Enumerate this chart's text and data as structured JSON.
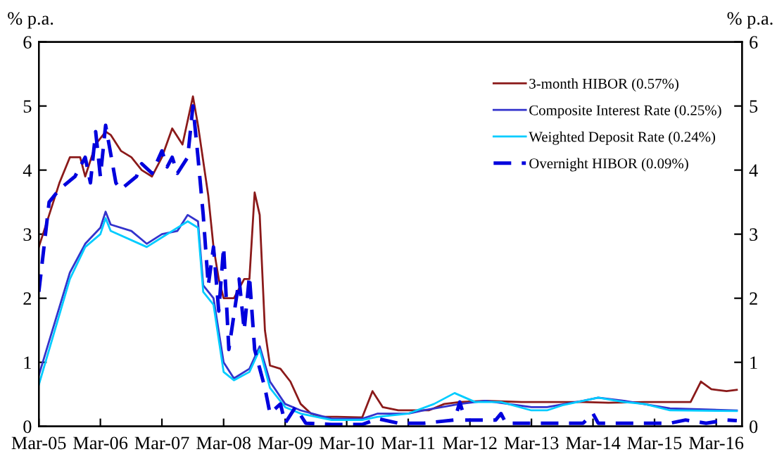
{
  "chart_data": {
    "type": "line",
    "ylabel": "% p.a.",
    "y2label": "% p.a.",
    "xlim": [
      "2005-03",
      "2016-08"
    ],
    "xticks": [
      {
        "value": "2005-03",
        "label": "Mar-05"
      },
      {
        "value": "2006-03",
        "label": "Mar-06"
      },
      {
        "value": "2007-03",
        "label": "Mar-07"
      },
      {
        "value": "2008-03",
        "label": "Mar-08"
      },
      {
        "value": "2009-03",
        "label": "Mar-09"
      },
      {
        "value": "2010-03",
        "label": "Mar-10"
      },
      {
        "value": "2011-03",
        "label": "Mar-11"
      },
      {
        "value": "2012-03",
        "label": "Mar-12"
      },
      {
        "value": "2013-03",
        "label": "Mar-13"
      },
      {
        "value": "2014-03",
        "label": "Mar-14"
      },
      {
        "value": "2015-03",
        "label": "Mar-15"
      },
      {
        "value": "2016-03",
        "label": "Mar-16"
      }
    ],
    "ylim": [
      0,
      6
    ],
    "yticks": [
      0,
      1,
      2,
      3,
      4,
      5,
      6
    ],
    "y2lim": [
      0,
      6
    ],
    "y2ticks": [
      0,
      1,
      2,
      3,
      4,
      5,
      6
    ],
    "grid": false,
    "legend": "top right",
    "marker": "none",
    "series": [
      {
        "name": "3-month HIBOR (0.57%)",
        "color": "#8b1a1a",
        "line_style": "solid",
        "x": [
          "2005-03",
          "2005-05",
          "2005-07",
          "2005-09",
          "2005-11",
          "2005-12",
          "2006-02",
          "2006-04",
          "2006-05",
          "2006-07",
          "2006-09",
          "2006-11",
          "2007-01",
          "2007-03",
          "2007-05",
          "2007-07",
          "2007-09",
          "2007-10",
          "2007-12",
          "2008-01",
          "2008-02",
          "2008-03",
          "2008-05",
          "2008-07",
          "2008-08",
          "2008-09",
          "2008-10",
          "2008-11",
          "2008-12",
          "2009-02",
          "2009-04",
          "2009-06",
          "2009-08",
          "2009-10",
          "2010-01",
          "2010-06",
          "2010-08",
          "2010-10",
          "2011-01",
          "2011-04",
          "2011-07",
          "2011-10",
          "2012-01",
          "2012-06",
          "2013-01",
          "2013-06",
          "2014-01",
          "2014-06",
          "2015-01",
          "2015-06",
          "2015-10",
          "2015-12",
          "2016-02",
          "2016-05",
          "2016-07"
        ],
        "values": [
          2.8,
          3.3,
          3.8,
          4.2,
          4.2,
          3.9,
          4.4,
          4.6,
          4.55,
          4.3,
          4.2,
          4.0,
          3.9,
          4.2,
          4.65,
          4.4,
          5.15,
          4.7,
          3.6,
          2.8,
          2.3,
          2.0,
          2.0,
          2.3,
          2.3,
          3.65,
          3.3,
          1.5,
          0.95,
          0.9,
          0.7,
          0.35,
          0.2,
          0.15,
          0.15,
          0.14,
          0.55,
          0.3,
          0.25,
          0.25,
          0.25,
          0.35,
          0.38,
          0.4,
          0.38,
          0.38,
          0.38,
          0.37,
          0.38,
          0.38,
          0.38,
          0.7,
          0.58,
          0.55,
          0.57
        ]
      },
      {
        "name": "Composite Interest Rate (0.25%)",
        "color": "#3333cc",
        "line_style": "solid",
        "x": [
          "2005-03",
          "2005-09",
          "2005-12",
          "2006-03",
          "2006-04",
          "2006-05",
          "2006-09",
          "2006-12",
          "2007-03",
          "2007-06",
          "2007-08",
          "2007-10",
          "2007-11",
          "2008-01",
          "2008-03",
          "2008-05",
          "2008-08",
          "2008-10",
          "2008-12",
          "2009-03",
          "2009-06",
          "2009-12",
          "2010-06",
          "2010-09",
          "2011-03",
          "2011-06",
          "2012-01",
          "2012-06",
          "2013-03",
          "2013-06",
          "2014-01",
          "2014-04",
          "2014-09",
          "2015-06",
          "2016-07"
        ],
        "values": [
          0.8,
          2.4,
          2.85,
          3.1,
          3.35,
          3.15,
          3.05,
          2.85,
          3.0,
          3.05,
          3.3,
          3.2,
          2.2,
          2.0,
          1.0,
          0.75,
          0.9,
          1.25,
          0.7,
          0.35,
          0.25,
          0.12,
          0.12,
          0.2,
          0.2,
          0.25,
          0.35,
          0.4,
          0.3,
          0.3,
          0.4,
          0.45,
          0.4,
          0.28,
          0.25
        ]
      },
      {
        "name": "Weighted Deposit Rate (0.24%)",
        "color": "#00ccff",
        "line_style": "solid",
        "x": [
          "2005-03",
          "2005-09",
          "2005-12",
          "2006-03",
          "2006-04",
          "2006-05",
          "2006-12",
          "2007-03",
          "2007-08",
          "2007-10",
          "2007-11",
          "2008-01",
          "2008-03",
          "2008-05",
          "2008-08",
          "2008-10",
          "2008-12",
          "2009-03",
          "2009-06",
          "2009-12",
          "2010-06",
          "2010-09",
          "2011-03",
          "2011-08",
          "2011-12",
          "2012-04",
          "2012-09",
          "2013-03",
          "2013-06",
          "2013-09",
          "2014-04",
          "2014-09",
          "2015-01",
          "2015-06",
          "2016-07"
        ],
        "values": [
          0.65,
          2.3,
          2.8,
          3.0,
          3.25,
          3.05,
          2.8,
          2.95,
          3.2,
          3.1,
          2.1,
          1.9,
          0.85,
          0.72,
          0.85,
          1.2,
          0.6,
          0.3,
          0.2,
          0.1,
          0.1,
          0.15,
          0.2,
          0.35,
          0.52,
          0.38,
          0.38,
          0.25,
          0.25,
          0.33,
          0.45,
          0.38,
          0.35,
          0.25,
          0.24
        ]
      },
      {
        "name": "Overnight HIBOR (0.09%)",
        "color": "#0000dd",
        "line_style": "dashed",
        "x": [
          "2005-03",
          "2005-05",
          "2005-07",
          "2005-10",
          "2005-12",
          "2006-01",
          "2006-02",
          "2006-03",
          "2006-04",
          "2006-06",
          "2006-07",
          "2006-10",
          "2006-11",
          "2007-01",
          "2007-03",
          "2007-04",
          "2007-05",
          "2007-06",
          "2007-08",
          "2007-09",
          "2007-10",
          "2007-11",
          "2007-12",
          "2008-01",
          "2008-02",
          "2008-03",
          "2008-04",
          "2008-06",
          "2008-07",
          "2008-08",
          "2008-09",
          "2008-11",
          "2008-12",
          "2009-02",
          "2009-03",
          "2009-05",
          "2009-07",
          "2009-12",
          "2010-06",
          "2010-09",
          "2011-01",
          "2011-06",
          "2011-12",
          "2012-01",
          "2012-02",
          "2012-08",
          "2012-09",
          "2012-10",
          "2013-06",
          "2014-01",
          "2014-03",
          "2014-04",
          "2015-06",
          "2015-09",
          "2016-01",
          "2016-05",
          "2016-07"
        ],
        "values": [
          2.1,
          3.5,
          3.7,
          3.9,
          4.2,
          3.8,
          4.6,
          3.9,
          4.7,
          3.8,
          3.7,
          3.9,
          4.1,
          3.95,
          4.3,
          4.05,
          4.2,
          3.95,
          4.2,
          5.0,
          4.2,
          3.3,
          2.2,
          2.8,
          1.8,
          2.8,
          1.2,
          2.3,
          1.5,
          2.35,
          1.2,
          0.6,
          0.2,
          0.35,
          0.05,
          0.3,
          0.05,
          0.03,
          0.03,
          0.12,
          0.05,
          0.05,
          0.1,
          0.38,
          0.1,
          0.1,
          0.2,
          0.05,
          0.05,
          0.05,
          0.2,
          0.05,
          0.05,
          0.1,
          0.05,
          0.1,
          0.09
        ]
      }
    ]
  }
}
